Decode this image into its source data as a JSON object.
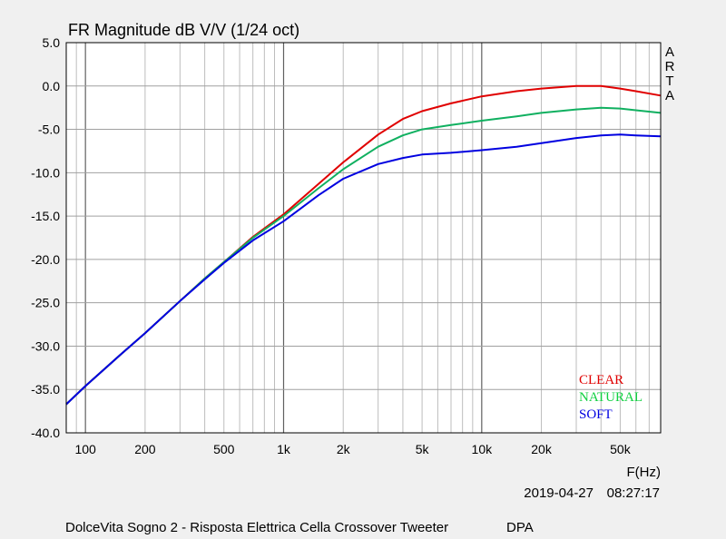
{
  "chart_data": {
    "type": "line",
    "title": "FR Magnitude dB V/V (1/24 oct)",
    "xlabel": "F(Hz)",
    "ylabel": "",
    "x_scale": "log",
    "xlim": [
      80,
      80000
    ],
    "ylim": [
      -40,
      5
    ],
    "grid": true,
    "y_ticks": [
      "5.0",
      "0.0",
      "-5.0",
      "-10.0",
      "-15.0",
      "-20.0",
      "-25.0",
      "-30.0",
      "-35.0",
      "-40.0"
    ],
    "x_ticks": [
      {
        "value": 100,
        "label": "100"
      },
      {
        "value": 200,
        "label": "200"
      },
      {
        "value": 500,
        "label": "500"
      },
      {
        "value": 1000,
        "label": "1k"
      },
      {
        "value": 2000,
        "label": "2k"
      },
      {
        "value": 5000,
        "label": "5k"
      },
      {
        "value": 10000,
        "label": "10k"
      },
      {
        "value": 20000,
        "label": "20k"
      },
      {
        "value": 50000,
        "label": "50k"
      }
    ],
    "side_label": [
      "A",
      "R",
      "T",
      "A"
    ],
    "date": "2019-04-27",
    "time": "08:27:17",
    "footer": "DolceVita Sogno 2 - Risposta Elettrica Cella Crossover Tweeter",
    "footer_right": "DPA",
    "legend_position": "bottom-right",
    "series": [
      {
        "name": "CLEAR",
        "color": "#e00000",
        "points": [
          [
            80,
            -36.7
          ],
          [
            100,
            -34.6
          ],
          [
            150,
            -31
          ],
          [
            200,
            -28.5
          ],
          [
            300,
            -24.8
          ],
          [
            400,
            -22.2
          ],
          [
            500,
            -20.3
          ],
          [
            700,
            -17.4
          ],
          [
            1000,
            -14.8
          ],
          [
            1500,
            -11.3
          ],
          [
            2000,
            -8.8
          ],
          [
            3000,
            -5.6
          ],
          [
            4000,
            -3.8
          ],
          [
            5000,
            -2.9
          ],
          [
            7000,
            -2.0
          ],
          [
            10000,
            -1.2
          ],
          [
            15000,
            -0.6
          ],
          [
            20000,
            -0.3
          ],
          [
            30000,
            0.0
          ],
          [
            40000,
            0.0
          ],
          [
            50000,
            -0.3
          ],
          [
            60000,
            -0.6
          ],
          [
            80000,
            -1.1
          ]
        ]
      },
      {
        "name": "NATURAL",
        "color": "#10b060",
        "points": [
          [
            80,
            -36.7
          ],
          [
            100,
            -34.6
          ],
          [
            150,
            -31
          ],
          [
            200,
            -28.5
          ],
          [
            300,
            -24.8
          ],
          [
            400,
            -22.2
          ],
          [
            500,
            -20.3
          ],
          [
            700,
            -17.5
          ],
          [
            1000,
            -15.0
          ],
          [
            1500,
            -11.8
          ],
          [
            2000,
            -9.6
          ],
          [
            3000,
            -7.0
          ],
          [
            4000,
            -5.7
          ],
          [
            5000,
            -5.0
          ],
          [
            7000,
            -4.5
          ],
          [
            10000,
            -4.0
          ],
          [
            15000,
            -3.5
          ],
          [
            20000,
            -3.1
          ],
          [
            30000,
            -2.7
          ],
          [
            40000,
            -2.5
          ],
          [
            50000,
            -2.6
          ],
          [
            60000,
            -2.8
          ],
          [
            80000,
            -3.1
          ]
        ]
      },
      {
        "name": "SOFT",
        "color": "#0000e0",
        "points": [
          [
            80,
            -36.7
          ],
          [
            100,
            -34.6
          ],
          [
            150,
            -31
          ],
          [
            200,
            -28.5
          ],
          [
            300,
            -24.8
          ],
          [
            400,
            -22.3
          ],
          [
            500,
            -20.4
          ],
          [
            700,
            -17.8
          ],
          [
            1000,
            -15.6
          ],
          [
            1500,
            -12.6
          ],
          [
            2000,
            -10.7
          ],
          [
            3000,
            -9.0
          ],
          [
            4000,
            -8.3
          ],
          [
            5000,
            -7.9
          ],
          [
            7000,
            -7.7
          ],
          [
            10000,
            -7.4
          ],
          [
            15000,
            -7.0
          ],
          [
            20000,
            -6.6
          ],
          [
            30000,
            -6.0
          ],
          [
            40000,
            -5.7
          ],
          [
            50000,
            -5.6
          ],
          [
            60000,
            -5.7
          ],
          [
            80000,
            -5.8
          ]
        ]
      }
    ]
  }
}
